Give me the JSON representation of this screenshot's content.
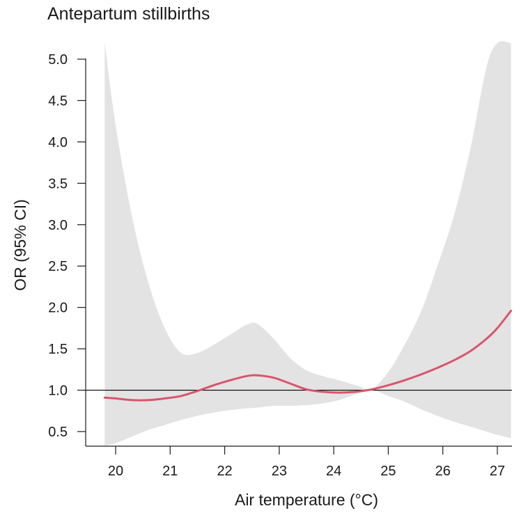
{
  "chart_data": {
    "type": "line",
    "title": "Antepartum stillbirths",
    "xlabel": "Air temperature (°C)",
    "ylabel": "OR (95% CI)",
    "xlim": [
      19.7,
      27.3
    ],
    "ylim": [
      0.5,
      5.0
    ],
    "x_ticks": [
      20,
      21,
      22,
      23,
      24,
      25,
      26,
      27
    ],
    "y_ticks": [
      0.5,
      1.0,
      1.5,
      2.0,
      2.5,
      3.0,
      3.5,
      4.0,
      4.5,
      5.0
    ],
    "x_tick_labels": [
      "20",
      "21",
      "22",
      "23",
      "24",
      "25",
      "26",
      "27"
    ],
    "y_tick_labels": [
      "0.5",
      "1.0",
      "1.5",
      "2.0",
      "2.5",
      "3.0",
      "3.5",
      "4.0",
      "4.5",
      "5.0"
    ],
    "reference_line": 1.0,
    "grid": false,
    "colors": {
      "line": "#d9556a",
      "band": "#e3e3e3"
    },
    "series": [
      {
        "x": [
          19.8,
          20.0,
          20.3,
          20.6,
          20.9,
          21.2,
          21.5,
          21.8,
          22.1,
          22.4,
          22.6,
          22.9,
          23.2,
          23.5,
          23.8,
          24.1,
          24.4,
          24.7,
          25.0,
          25.3,
          25.6,
          25.9,
          26.2,
          26.5,
          26.8,
          27.0,
          27.25
        ],
        "y": [
          0.91,
          0.9,
          0.88,
          0.88,
          0.9,
          0.93,
          0.99,
          1.06,
          1.12,
          1.17,
          1.18,
          1.15,
          1.08,
          1.01,
          0.98,
          0.97,
          0.98,
          1.01,
          1.06,
          1.12,
          1.19,
          1.27,
          1.36,
          1.47,
          1.62,
          1.75,
          1.96
        ],
        "lower": [
          0.33,
          0.36,
          0.44,
          0.52,
          0.58,
          0.64,
          0.69,
          0.73,
          0.76,
          0.78,
          0.79,
          0.81,
          0.81,
          0.82,
          0.84,
          0.88,
          0.95,
          1.0,
          0.93,
          0.86,
          0.77,
          0.69,
          0.62,
          0.56,
          0.5,
          0.46,
          0.42
        ],
        "upper": [
          5.2,
          4.2,
          3.1,
          2.3,
          1.75,
          1.45,
          1.45,
          1.55,
          1.67,
          1.79,
          1.8,
          1.62,
          1.39,
          1.24,
          1.17,
          1.12,
          1.06,
          1.02,
          1.22,
          1.55,
          1.95,
          2.5,
          3.1,
          3.9,
          4.9,
          5.2,
          5.2
        ]
      }
    ]
  }
}
